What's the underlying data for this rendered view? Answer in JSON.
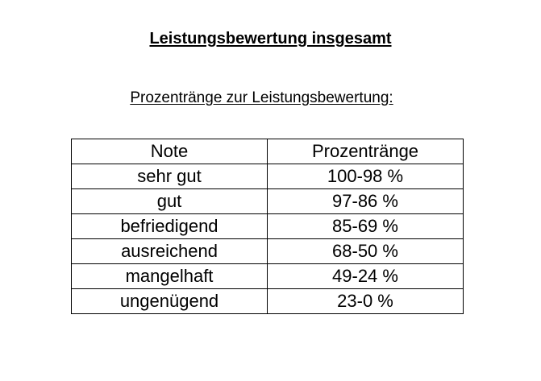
{
  "page": {
    "title": "Leistungsbewertung insgesamt",
    "subtitle": "Prozentränge zur Leistungsbewertung:"
  },
  "table": {
    "columns": [
      "Note",
      "Prozentränge"
    ],
    "rows": [
      {
        "note": "sehr gut",
        "range": "100-98 %"
      },
      {
        "note": "gut",
        "range": "97-86 %"
      },
      {
        "note": "befriedigend",
        "range": "85-69 %"
      },
      {
        "note": "ausreichend",
        "range": "68-50 %"
      },
      {
        "note": "mangelhaft",
        "range": "49-24 %"
      },
      {
        "note": "ungenügend",
        "range": "23-0 %"
      }
    ]
  }
}
